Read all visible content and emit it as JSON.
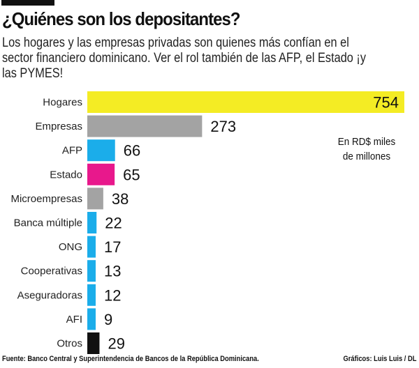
{
  "title": "¿Quiénes son los depositantes?",
  "subtitle": "Los hogares y las empresas privadas son quienes más confían en el sector financiero dominicano. Ver el rol también de las AFP, el Estado ¡y las PYMES!",
  "unit_note": "En RD$ miles de millones",
  "source": "Fuente: Banco Central y Superintendencia de Bancos de la República Dominicana.",
  "credit": "Gráficos: Luis Luis / DL",
  "chart_data": {
    "type": "bar",
    "orientation": "horizontal",
    "categories": [
      "Hogares",
      "Empresas",
      "AFP",
      "Estado",
      "Microempresas",
      "Banca múltiple",
      "ONG",
      "Cooperativas",
      "Aseguradoras",
      "AFI",
      "Otros"
    ],
    "values": [
      754,
      273,
      66,
      65,
      38,
      22,
      17,
      13,
      12,
      9,
      29
    ],
    "colors": [
      "#f4ec24",
      "#a3a3a3",
      "#1badea",
      "#e8188c",
      "#a3a3a3",
      "#1badea",
      "#1badea",
      "#1badea",
      "#1badea",
      "#1badea",
      "#111111"
    ],
    "unit": "En RD$ miles de millones",
    "xlim": [
      0,
      754
    ],
    "grid": false
  }
}
